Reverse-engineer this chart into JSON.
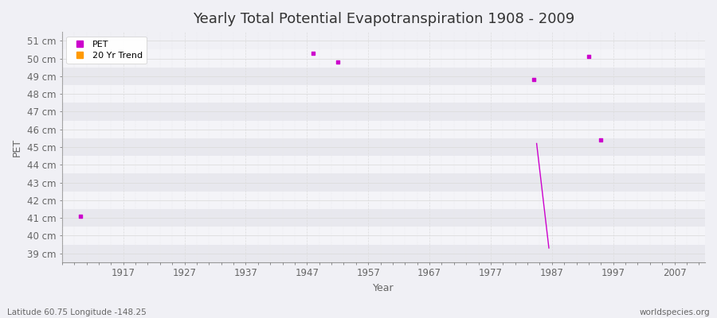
{
  "title": "Yearly Total Potential Evapotranspiration 1908 - 2009",
  "xlabel": "Year",
  "ylabel": "PET",
  "xlim": [
    1907,
    2012
  ],
  "ylim": [
    38.5,
    51.5
  ],
  "yticks": [
    39,
    40,
    41,
    42,
    43,
    44,
    45,
    46,
    47,
    48,
    49,
    50,
    51
  ],
  "ytick_labels": [
    "39 cm",
    "40 cm",
    "41 cm",
    "42 cm",
    "43 cm",
    "44 cm",
    "45 cm",
    "46 cm",
    "47 cm",
    "48 cm",
    "49 cm",
    "50 cm",
    "51 cm"
  ],
  "xticks": [
    1917,
    1927,
    1937,
    1947,
    1957,
    1967,
    1977,
    1987,
    1997,
    2007
  ],
  "pet_points": {
    "years": [
      1910,
      1948,
      1952,
      1984,
      1993,
      1995
    ],
    "values": [
      41.1,
      50.3,
      49.8,
      48.8,
      50.1,
      45.4
    ]
  },
  "trend_line": {
    "years": [
      1984.5,
      1986.5
    ],
    "values": [
      45.2,
      39.3
    ]
  },
  "pet_color": "#cc00cc",
  "trend_color": "#ff9900",
  "bg_color": "#f0f0f5",
  "plot_bg_color": "#f0f0f5",
  "band_color_dark": "#e8e8ee",
  "band_color_light": "#f4f4f8",
  "grid_major_color": "#dddddd",
  "grid_minor_color": "#e8e8ec",
  "tick_color": "#666666",
  "spine_color": "#999999",
  "title_fontsize": 13,
  "axis_label_fontsize": 9,
  "tick_fontsize": 8.5,
  "footer_left": "Latitude 60.75 Longitude -148.25",
  "footer_right": "worldspecies.org",
  "legend_labels": [
    "PET",
    "20 Yr Trend"
  ],
  "band_yticks": [
    39,
    40,
    41,
    42,
    43,
    44,
    45,
    46,
    47,
    48,
    49,
    50,
    51
  ]
}
